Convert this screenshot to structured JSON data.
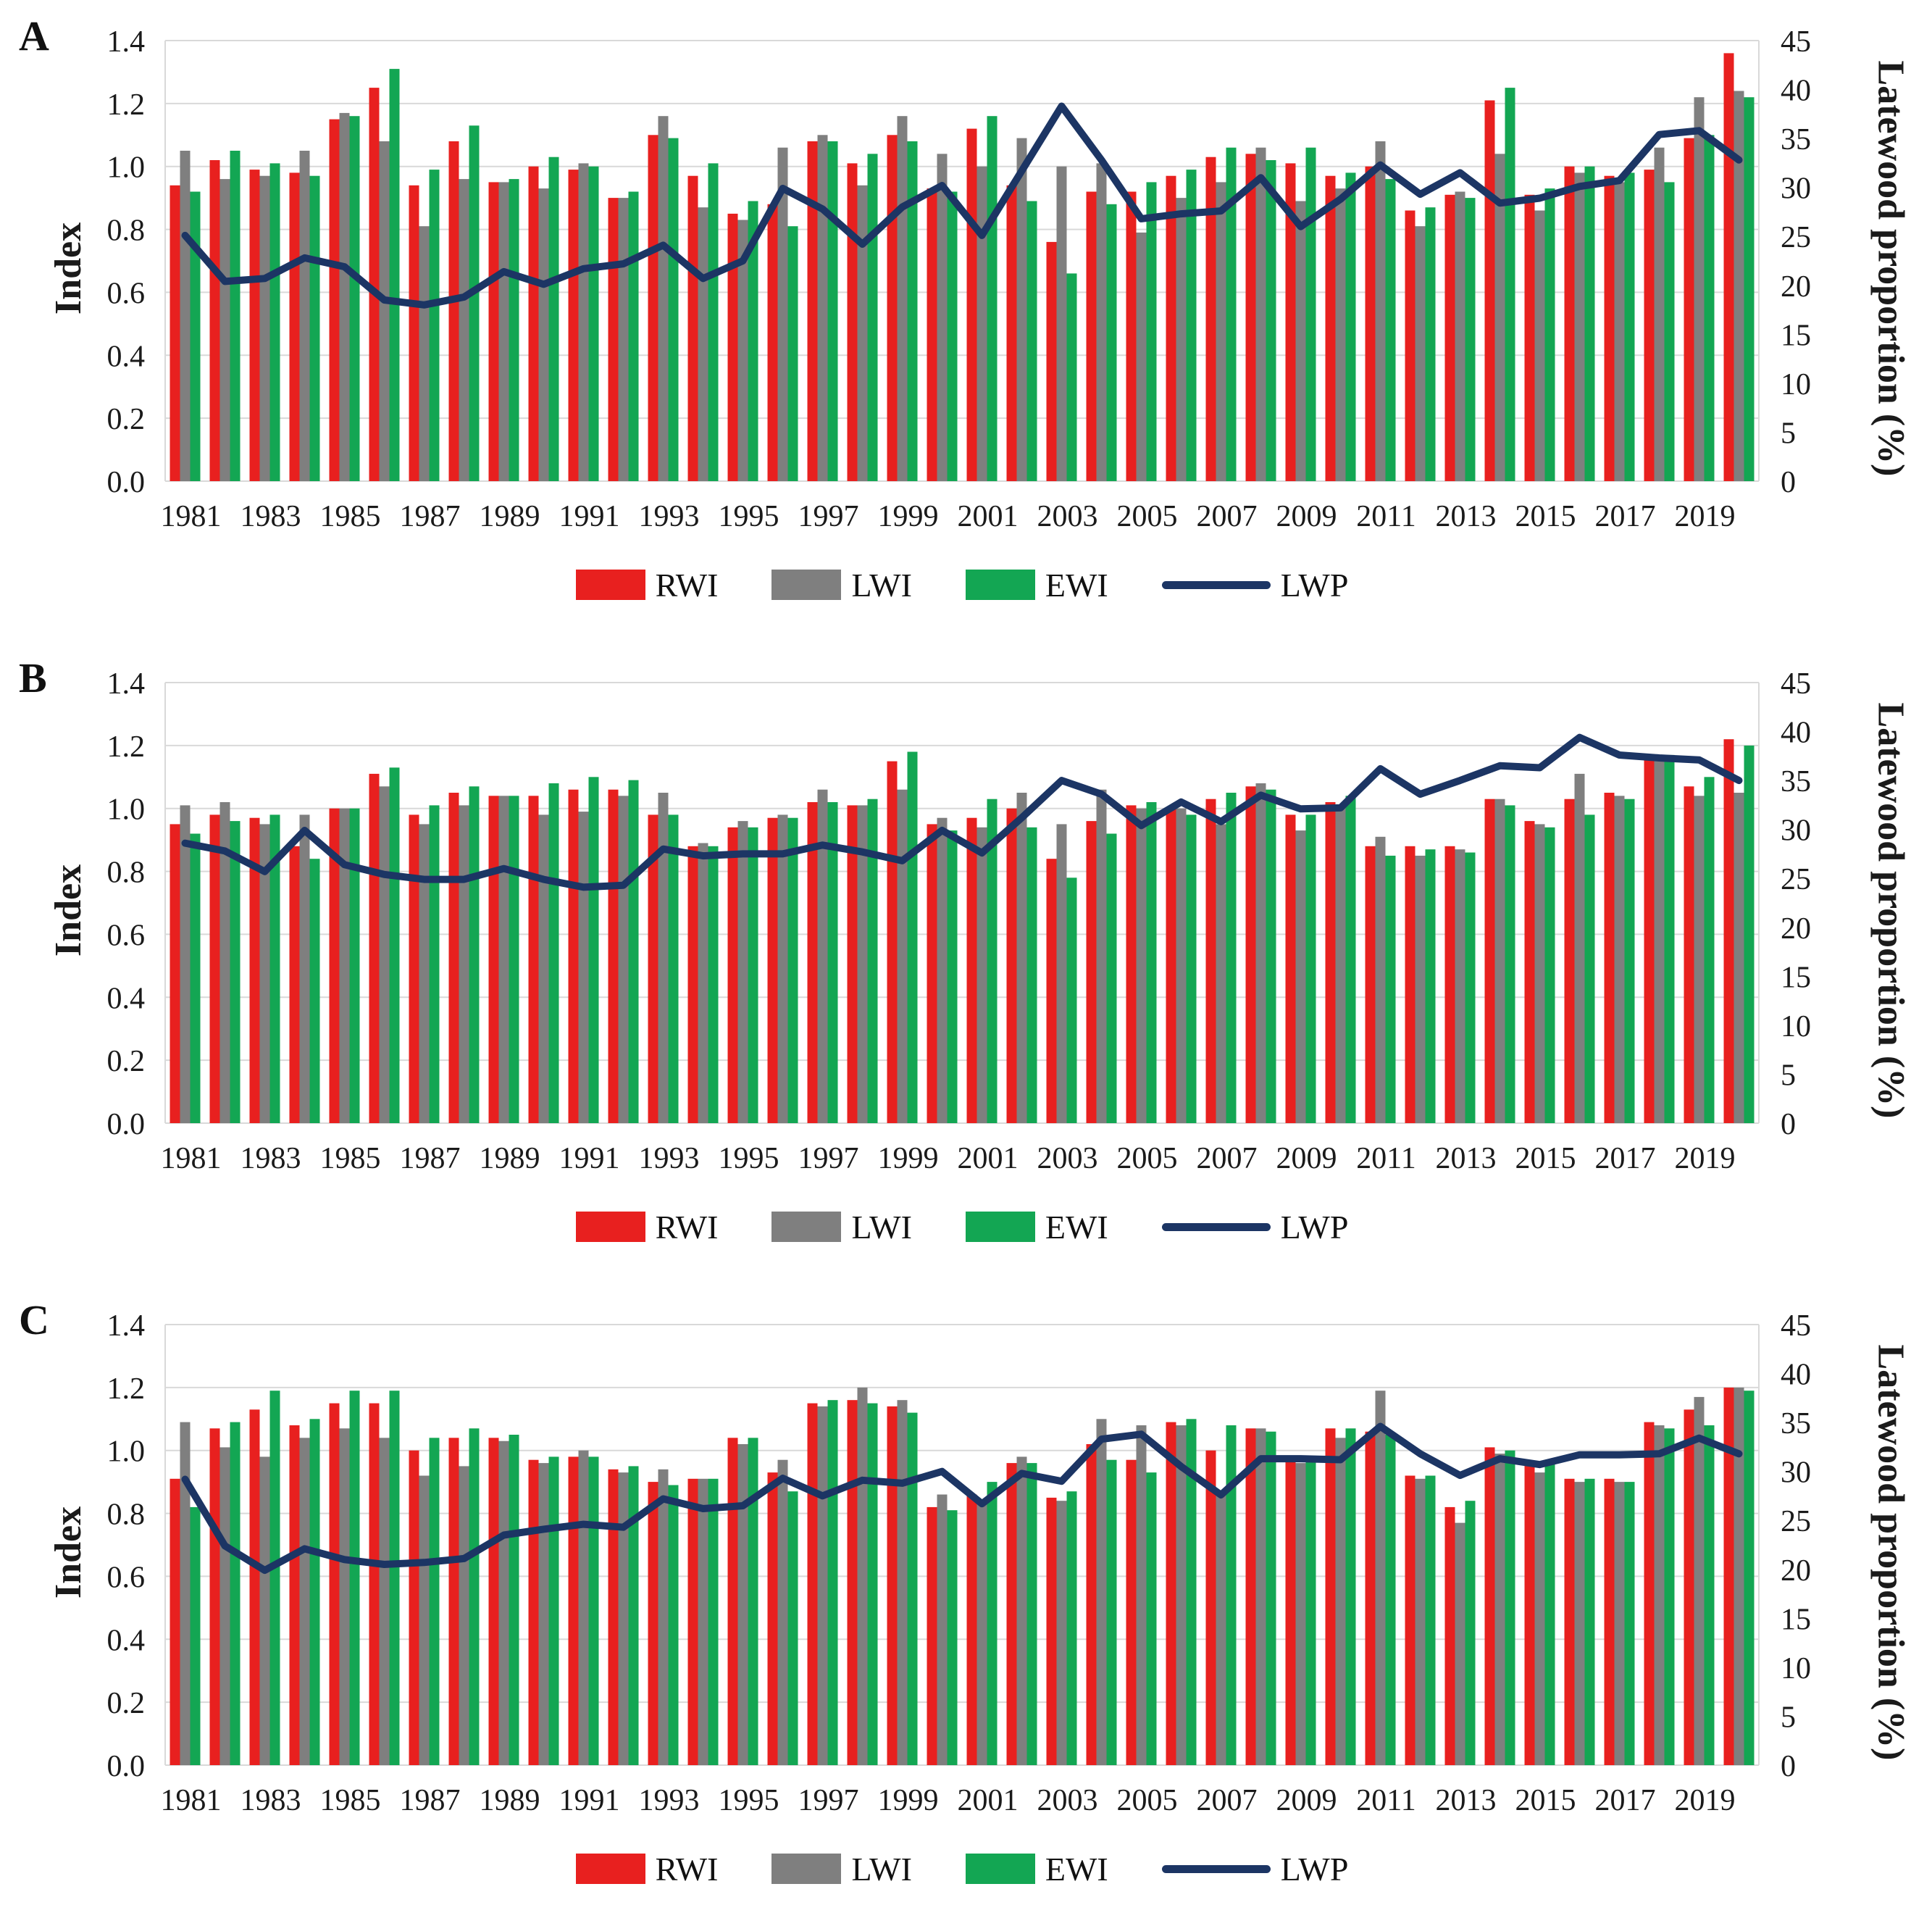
{
  "colors": {
    "rwi": "#E8201F",
    "lwi": "#7F7F7F",
    "ewi": "#13A653",
    "lwp": "#1C3564",
    "grid": "#D9D9D9",
    "text": "#1A1A1A"
  },
  "axis": {
    "left_title": "Index",
    "right_title": "Latewood proportion (%)",
    "left_ticks": [
      "1.4",
      "1.2",
      "1.0",
      "0.8",
      "0.6",
      "0.4",
      "0.2",
      "0.0"
    ],
    "right_ticks": [
      "45",
      "40",
      "35",
      "30",
      "25",
      "20",
      "15",
      "10",
      "5",
      "0"
    ],
    "x_tick_labels": [
      "1981",
      "1983",
      "1985",
      "1987",
      "1989",
      "1991",
      "1993",
      "1995",
      "1997",
      "1999",
      "2001",
      "2003",
      "2005",
      "2007",
      "2009",
      "2011",
      "2013",
      "2015",
      "2017",
      "2019"
    ],
    "left_max": 1.4,
    "right_max": 45
  },
  "legend": {
    "rwi": "RWI",
    "lwi": "LWI",
    "ewi": "EWI",
    "lwp": "LWP"
  },
  "years": [
    1981,
    1982,
    1983,
    1984,
    1985,
    1986,
    1987,
    1988,
    1989,
    1990,
    1991,
    1992,
    1993,
    1994,
    1995,
    1996,
    1997,
    1998,
    1999,
    2000,
    2001,
    2002,
    2003,
    2004,
    2005,
    2006,
    2007,
    2008,
    2009,
    2010,
    2011,
    2012,
    2013,
    2014,
    2015,
    2016,
    2017,
    2018,
    2019,
    2020
  ],
  "chart_data": [
    {
      "type": "bar+line",
      "letter": "A",
      "series": [
        {
          "name": "RWI",
          "values": [
            0.94,
            1.02,
            0.99,
            0.98,
            1.15,
            1.25,
            0.94,
            1.08,
            0.95,
            1.0,
            0.99,
            0.9,
            1.1,
            0.97,
            0.85,
            0.88,
            1.08,
            1.01,
            1.1,
            0.93,
            1.12,
            0.94,
            0.76,
            0.92,
            0.92,
            0.97,
            1.03,
            1.04,
            1.01,
            0.97,
            1.0,
            0.86,
            0.91,
            1.21,
            0.91,
            1.0,
            0.97,
            0.99,
            1.09,
            1.36
          ]
        },
        {
          "name": "LWI",
          "values": [
            1.05,
            0.96,
            0.97,
            1.05,
            1.17,
            1.08,
            0.81,
            0.96,
            0.95,
            0.93,
            1.01,
            0.9,
            1.16,
            0.87,
            0.83,
            1.06,
            1.1,
            0.94,
            1.16,
            1.04,
            1.0,
            1.09,
            1.0,
            1.01,
            0.79,
            0.9,
            0.95,
            1.06,
            0.89,
            0.93,
            1.08,
            0.81,
            0.92,
            1.04,
            0.86,
            0.98,
            0.95,
            1.06,
            1.22,
            1.24
          ]
        },
        {
          "name": "EWI",
          "values": [
            0.92,
            1.05,
            1.01,
            0.97,
            1.16,
            1.31,
            0.99,
            1.13,
            0.96,
            1.03,
            1.0,
            0.92,
            1.09,
            1.01,
            0.89,
            0.81,
            1.08,
            1.04,
            1.08,
            0.92,
            1.16,
            0.89,
            0.66,
            0.88,
            0.95,
            0.99,
            1.06,
            1.02,
            1.06,
            0.98,
            0.96,
            0.87,
            0.9,
            1.25,
            0.93,
            1.0,
            0.98,
            0.95,
            1.1,
            1.22
          ]
        }
      ],
      "lwp_percent": [
        25.1,
        20.4,
        20.7,
        22.8,
        21.9,
        18.5,
        18.0,
        18.8,
        21.4,
        20.1,
        21.7,
        22.2,
        24.1,
        20.7,
        22.5,
        29.9,
        27.8,
        24.2,
        28.0,
        30.2,
        25.1,
        31.7,
        38.3,
        32.8,
        26.8,
        27.3,
        27.6,
        31.0,
        26.0,
        28.8,
        32.3,
        29.3,
        31.5,
        28.4,
        28.9,
        30.1,
        30.7,
        35.4,
        35.8,
        32.8
      ]
    },
    {
      "type": "bar+line",
      "letter": "B",
      "series": [
        {
          "name": "RWI",
          "values": [
            0.95,
            0.98,
            0.97,
            0.88,
            1.0,
            1.11,
            0.98,
            1.05,
            1.04,
            1.04,
            1.06,
            1.06,
            0.98,
            0.88,
            0.94,
            0.97,
            1.02,
            1.01,
            1.15,
            0.95,
            0.97,
            1.0,
            0.84,
            0.96,
            1.01,
            1.0,
            1.03,
            1.07,
            0.98,
            1.02,
            0.88,
            0.88,
            0.88,
            1.03,
            0.96,
            1.03,
            1.05,
            1.16,
            1.07,
            1.22
          ]
        },
        {
          "name": "LWI",
          "values": [
            1.01,
            1.02,
            0.95,
            0.98,
            1.0,
            1.07,
            0.95,
            1.01,
            1.04,
            0.98,
            0.99,
            1.04,
            1.05,
            0.89,
            0.96,
            0.98,
            1.06,
            1.01,
            1.06,
            0.97,
            0.94,
            1.05,
            0.95,
            1.06,
            1.0,
            1.0,
            0.95,
            1.08,
            0.93,
            1.01,
            0.91,
            0.85,
            0.87,
            1.03,
            0.95,
            1.11,
            1.04,
            1.16,
            1.04,
            1.05
          ]
        },
        {
          "name": "EWI",
          "values": [
            0.92,
            0.96,
            0.98,
            0.84,
            1.0,
            1.13,
            1.01,
            1.07,
            1.04,
            1.08,
            1.1,
            1.09,
            0.98,
            0.88,
            0.94,
            0.97,
            1.02,
            1.03,
            1.18,
            0.93,
            1.03,
            0.94,
            0.78,
            0.92,
            1.02,
            0.98,
            1.05,
            1.06,
            0.98,
            1.04,
            0.85,
            0.87,
            0.86,
            1.01,
            0.94,
            0.98,
            1.03,
            1.17,
            1.1,
            1.2
          ]
        }
      ],
      "lwp_percent": [
        28.6,
        27.8,
        25.7,
        29.9,
        26.4,
        25.4,
        24.9,
        24.9,
        26.0,
        24.9,
        24.1,
        24.3,
        28.0,
        27.3,
        27.5,
        27.5,
        28.4,
        27.7,
        26.8,
        29.9,
        27.6,
        31.2,
        35.0,
        33.6,
        30.4,
        32.8,
        30.8,
        33.5,
        32.1,
        32.2,
        36.2,
        33.6,
        35.0,
        36.5,
        36.3,
        39.4,
        37.6,
        37.3,
        37.1,
        35.0
      ]
    },
    {
      "type": "bar+line",
      "letter": "C",
      "series": [
        {
          "name": "RWI",
          "values": [
            0.91,
            1.07,
            1.13,
            1.08,
            1.15,
            1.15,
            1.0,
            1.04,
            1.04,
            0.97,
            0.98,
            0.94,
            0.9,
            0.91,
            1.04,
            0.93,
            1.15,
            1.16,
            1.14,
            0.82,
            0.86,
            0.96,
            0.85,
            1.02,
            0.97,
            1.09,
            1.0,
            1.07,
            0.98,
            1.07,
            1.06,
            0.92,
            0.82,
            1.01,
            0.96,
            0.91,
            0.91,
            1.09,
            1.13,
            1.2
          ]
        },
        {
          "name": "LWI",
          "values": [
            1.09,
            1.01,
            0.98,
            1.04,
            1.07,
            1.04,
            0.92,
            0.95,
            1.03,
            0.96,
            1.0,
            0.93,
            0.94,
            0.91,
            1.02,
            0.97,
            1.14,
            1.2,
            1.16,
            0.86,
            0.84,
            0.98,
            0.84,
            1.1,
            1.08,
            1.08,
            0.86,
            1.07,
            0.96,
            1.04,
            1.19,
            0.91,
            0.77,
            0.99,
            0.93,
            0.9,
            0.9,
            1.08,
            1.17,
            1.2
          ]
        },
        {
          "name": "EWI",
          "values": [
            0.82,
            1.09,
            1.19,
            1.1,
            1.19,
            1.19,
            1.04,
            1.07,
            1.05,
            0.98,
            0.98,
            0.95,
            0.89,
            0.91,
            1.04,
            0.87,
            1.16,
            1.15,
            1.12,
            0.81,
            0.9,
            0.96,
            0.87,
            0.97,
            0.93,
            1.1,
            1.08,
            1.06,
            0.97,
            1.07,
            1.05,
            0.92,
            0.84,
            1.0,
            0.97,
            0.91,
            0.9,
            1.07,
            1.08,
            1.19
          ]
        }
      ],
      "lwp_percent": [
        29.2,
        22.4,
        19.9,
        22.1,
        21.0,
        20.5,
        20.7,
        21.1,
        23.5,
        24.1,
        24.6,
        24.3,
        27.2,
        26.2,
        26.5,
        29.3,
        27.5,
        29.1,
        28.8,
        30.0,
        26.7,
        29.8,
        29.0,
        33.3,
        33.8,
        30.5,
        27.6,
        31.3,
        31.3,
        31.2,
        34.6,
        31.8,
        29.6,
        31.3,
        30.7,
        31.7,
        31.7,
        31.8,
        33.4,
        31.8
      ]
    }
  ]
}
